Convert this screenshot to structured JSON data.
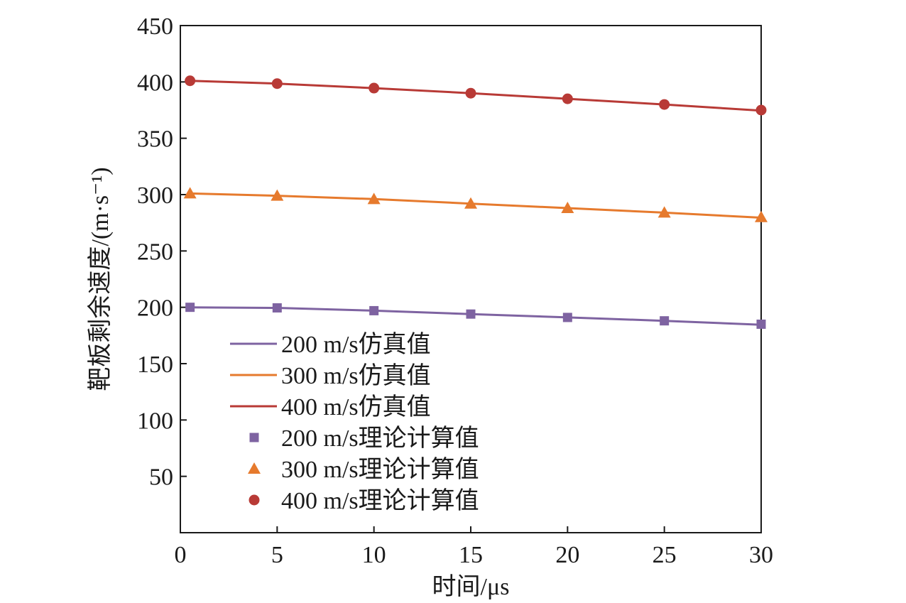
{
  "chart_data": {
    "type": "line",
    "title": "",
    "xlabel": "时间/μs",
    "ylabel": "靶板剩余速度/(m·s⁻¹)",
    "xlim": [
      0,
      30
    ],
    "ylim": [
      0,
      450
    ],
    "x_ticks": [
      "0",
      "5",
      "10",
      "15",
      "20",
      "25",
      "30"
    ],
    "y_ticks": [
      "50",
      "100",
      "150",
      "200",
      "250",
      "300",
      "350",
      "400",
      "450"
    ],
    "grid": false,
    "legend_position": "bottom-left",
    "series": [
      {
        "name": "200 m/s仿真值",
        "kind": "line",
        "color": "#7e63a1",
        "points": [
          [
            0.5,
            200
          ],
          [
            5,
            199.5
          ],
          [
            10,
            197
          ],
          [
            15,
            194
          ],
          [
            20,
            191
          ],
          [
            25,
            188
          ],
          [
            30,
            184.5
          ]
        ]
      },
      {
        "name": "300 m/s仿真值",
        "kind": "line",
        "color": "#e67a2d",
        "points": [
          [
            0.5,
            301
          ],
          [
            5,
            299
          ],
          [
            10,
            296
          ],
          [
            15,
            292
          ],
          [
            20,
            288
          ],
          [
            25,
            284
          ],
          [
            30,
            279.5
          ]
        ]
      },
      {
        "name": "400 m/s仿真值",
        "kind": "line",
        "color": "#b83a36",
        "points": [
          [
            0.5,
            401
          ],
          [
            5,
            398.5
          ],
          [
            10,
            394.5
          ],
          [
            15,
            390
          ],
          [
            20,
            385
          ],
          [
            25,
            380
          ],
          [
            30,
            374.5
          ]
        ]
      },
      {
        "name": "200 m/s理论计算值",
        "kind": "marker",
        "marker": "square",
        "color": "#7e63a1",
        "points": [
          [
            0.5,
            200
          ],
          [
            5,
            199.5
          ],
          [
            10,
            197
          ],
          [
            15,
            194
          ],
          [
            20,
            191
          ],
          [
            25,
            188
          ],
          [
            30,
            185
          ]
        ]
      },
      {
        "name": "300 m/s理论计算值",
        "kind": "marker",
        "marker": "triangle",
        "color": "#e67a2d",
        "points": [
          [
            0.5,
            301
          ],
          [
            5,
            299
          ],
          [
            10,
            296
          ],
          [
            15,
            292
          ],
          [
            20,
            288
          ],
          [
            25,
            284
          ],
          [
            30,
            280
          ]
        ]
      },
      {
        "name": "400 m/s理论计算值",
        "kind": "marker",
        "marker": "circle",
        "color": "#b83a36",
        "points": [
          [
            0.5,
            401
          ],
          [
            5,
            398.5
          ],
          [
            10,
            394.5
          ],
          [
            15,
            390
          ],
          [
            20,
            385
          ],
          [
            25,
            380
          ],
          [
            30,
            375
          ]
        ]
      }
    ]
  }
}
